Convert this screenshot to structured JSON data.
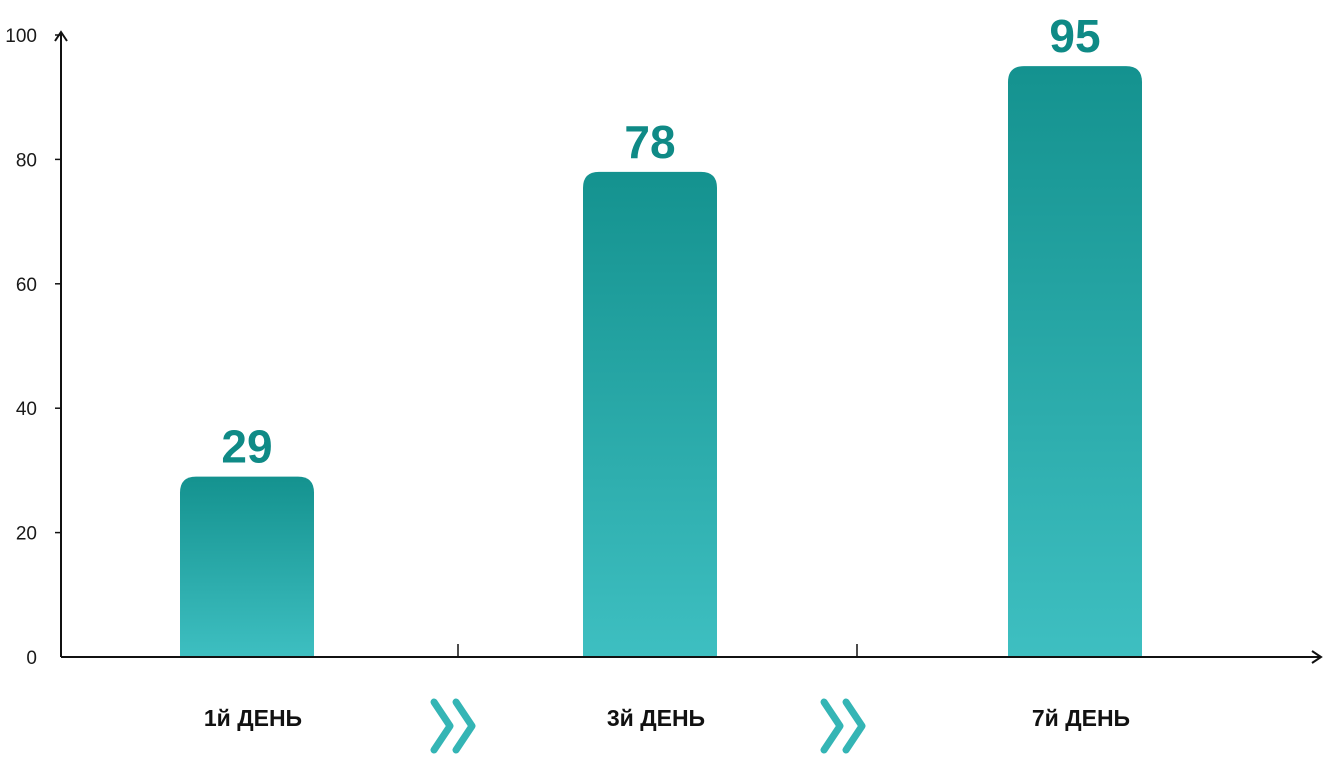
{
  "chart_data": {
    "type": "bar",
    "categories": [
      "1й ДЕНЬ",
      "3й ДЕНЬ",
      "7й ДЕНЬ"
    ],
    "values": [
      29,
      78,
      95
    ],
    "value_labels": [
      "29",
      "78",
      "95"
    ],
    "ylim": [
      0,
      100
    ],
    "yticks": [
      0,
      20,
      40,
      60,
      80,
      100
    ],
    "ytick_labels": [
      "0",
      "20",
      "40",
      "60",
      "80",
      "100"
    ],
    "title": "",
    "xlabel": "",
    "ylabel": "",
    "grid": false,
    "legend": "none",
    "separator_icon": "double-chevron-right-icon"
  },
  "colors": {
    "bar_top": "#14928f",
    "bar_bottom": "#3ebfc1",
    "value_label": "#0f8a86",
    "chevron": "#34b5b5",
    "axis": "#111111"
  }
}
